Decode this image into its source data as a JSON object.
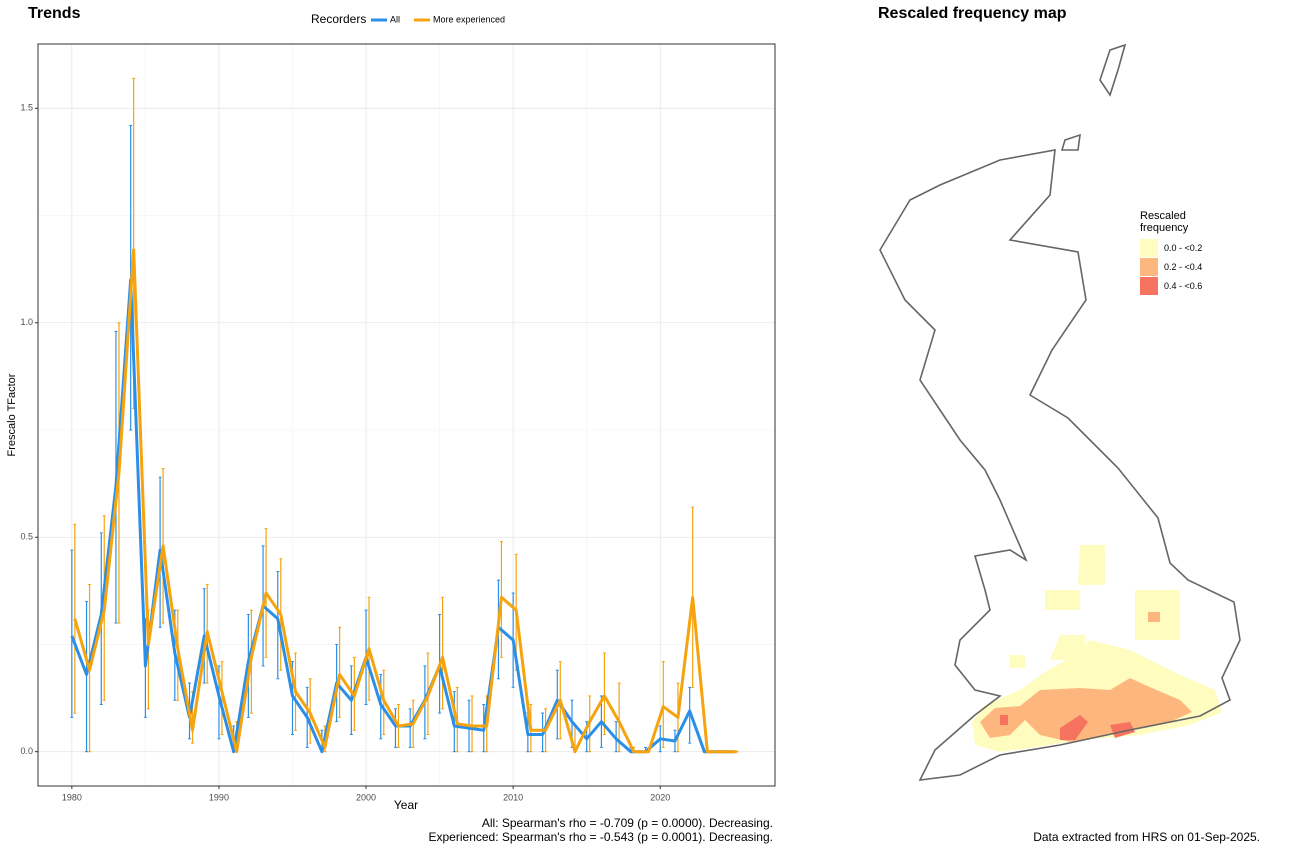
{
  "chart_data": {
    "type": "line",
    "title": "Trends",
    "legend_title": "Recorders",
    "xlabel": "Year",
    "ylabel": "Frescalo TFactor",
    "x": [
      1980,
      1981,
      1982,
      1983,
      1984,
      1985,
      1986,
      1987,
      1988,
      1989,
      1990,
      1991,
      1992,
      1993,
      1994,
      1995,
      1996,
      1997,
      1998,
      1999,
      2000,
      2001,
      2002,
      2003,
      2004,
      2005,
      2006,
      2007,
      2008,
      2009,
      2010,
      2011,
      2012,
      2013,
      2014,
      2015,
      2016,
      2017,
      2018,
      2019,
      2020,
      2021,
      2022,
      2023,
      2024,
      2025
    ],
    "series": [
      {
        "name": "All",
        "color": "#2b8fe8",
        "values": [
          0.27,
          0.18,
          0.32,
          0.62,
          1.1,
          0.2,
          0.47,
          0.23,
          0.08,
          0.27,
          0.13,
          0,
          0.21,
          0.34,
          0.31,
          0.13,
          0.08,
          0,
          0.16,
          0.12,
          0.22,
          0.11,
          0.06,
          0.06,
          0.12,
          0.2,
          0.06,
          0.055,
          0.05,
          0.29,
          0.26,
          0.04,
          0.04,
          0.12,
          0.07,
          0.03,
          0.07,
          0.03,
          0,
          0,
          0.03,
          0.025,
          0.095,
          0,
          0,
          0
        ],
        "lower": [
          0.08,
          0,
          0.11,
          0.3,
          0.75,
          0.08,
          0.29,
          0.12,
          0.03,
          0.16,
          0.03,
          0,
          0.08,
          0.2,
          0.17,
          0.04,
          0.01,
          0,
          0.07,
          0.04,
          0.11,
          0.03,
          0.01,
          0.01,
          0.03,
          0.09,
          0,
          0,
          0,
          0.17,
          0.15,
          0,
          0,
          0.03,
          0.01,
          0,
          0.01,
          0,
          0,
          0,
          0,
          0,
          0.02,
          0,
          0,
          0
        ],
        "upper": [
          0.47,
          0.35,
          0.51,
          0.98,
          1.46,
          0.31,
          0.64,
          0.33,
          0.16,
          0.38,
          0.2,
          0.06,
          0.32,
          0.48,
          0.42,
          0.21,
          0.15,
          0.05,
          0.25,
          0.2,
          0.33,
          0.18,
          0.1,
          0.1,
          0.2,
          0.32,
          0.14,
          0.12,
          0.11,
          0.4,
          0.37,
          0.09,
          0.09,
          0.19,
          0.12,
          0.07,
          0.13,
          0.07,
          0.01,
          0.01,
          0.06,
          0.05,
          0.15,
          0,
          0,
          0
        ]
      },
      {
        "name": "More experienced",
        "color": "#f5a30f",
        "values": [
          0.31,
          0.19,
          0.33,
          0.65,
          1.17,
          0.25,
          0.48,
          0.24,
          0.05,
          0.28,
          0.14,
          0,
          0.22,
          0.37,
          0.32,
          0.14,
          0.09,
          0.01,
          0.18,
          0.13,
          0.24,
          0.12,
          0.06,
          0.065,
          0.13,
          0.22,
          0.065,
          0.06,
          0.06,
          0.36,
          0.33,
          0.05,
          0.05,
          0.12,
          0,
          0.07,
          0.13,
          0.07,
          0,
          0,
          0.105,
          0.08,
          0.36,
          0,
          0,
          0
        ],
        "lower": [
          0.09,
          0,
          0.12,
          0.3,
          0.8,
          0.1,
          0.3,
          0.12,
          0.02,
          0.16,
          0.04,
          0,
          0.09,
          0.22,
          0.19,
          0.05,
          0.02,
          0,
          0.08,
          0.05,
          0.12,
          0.04,
          0.01,
          0.01,
          0.04,
          0.1,
          0,
          0,
          0,
          0.22,
          0.19,
          0,
          0,
          0.03,
          0,
          0,
          0.04,
          0,
          0,
          0,
          0.01,
          0,
          0.15,
          0,
          0,
          0
        ],
        "upper": [
          0.53,
          0.39,
          0.55,
          1.0,
          1.57,
          0.33,
          0.66,
          0.33,
          0.14,
          0.39,
          0.21,
          0.07,
          0.33,
          0.52,
          0.45,
          0.23,
          0.17,
          0.06,
          0.29,
          0.22,
          0.36,
          0.19,
          0.11,
          0.12,
          0.23,
          0.36,
          0.15,
          0.13,
          0.13,
          0.49,
          0.46,
          0.11,
          0.1,
          0.21,
          0.06,
          0.13,
          0.23,
          0.16,
          0.01,
          0,
          0.21,
          0.16,
          0.57,
          0,
          0,
          0
        ]
      }
    ],
    "xlim": [
      1977.7,
      2027.8
    ],
    "ylim": [
      -0.08,
      1.65
    ],
    "xticks": [
      1980,
      1990,
      2000,
      2010,
      2020
    ],
    "yticks": [
      {
        "value": 0,
        "label": "0.0"
      },
      {
        "value": 0.5,
        "label": "0.5"
      },
      {
        "value": 1,
        "label": "1.0"
      },
      {
        "value": 1.5,
        "label": "1.5"
      }
    ],
    "grid": true,
    "annotations": [
      "All: Spearman's rho = -0.709 (p = 0.0000). Decreasing.",
      "Experienced: Spearman's rho = -0.543 (p = 0.0001). Decreasing."
    ]
  },
  "map": {
    "title": "Rescaled frequency map",
    "legend_title": "Rescaled frequency",
    "legend": [
      {
        "label": "0.0 - <0.2",
        "color": "#fffcc0"
      },
      {
        "label": "0.2 - <0.4",
        "color": "#fdb77e"
      },
      {
        "label": "0.4 - <0.6",
        "color": "#f5735f"
      }
    ],
    "caption": "Data extracted from HRS on 01-Sep-2025."
  }
}
